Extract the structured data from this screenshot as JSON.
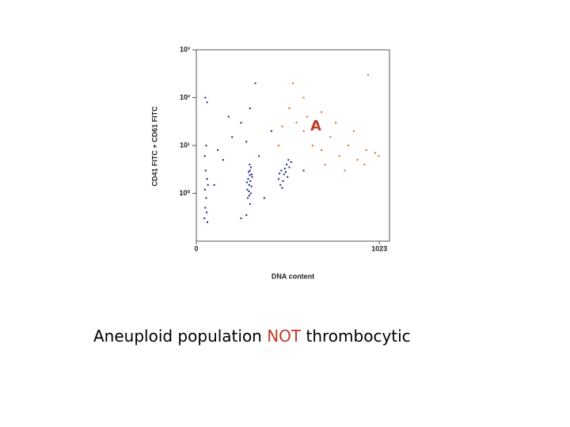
{
  "chart_data": {
    "type": "scatter",
    "y_label": "CD41 FITC + CD61 FITC",
    "x_label": "DNA content",
    "annotation": "A",
    "caption": [
      "Aneuploid population ",
      "NOT",
      " thrombocytic"
    ],
    "caption_colors": [
      "#000000",
      "#c0392b",
      "#000000"
    ],
    "xlim": [
      0,
      1080
    ],
    "xticks": [
      0,
      1023
    ],
    "ylim": [
      0.1,
      1000
    ],
    "yscale": "log",
    "yticks": [
      {
        "value": 1,
        "label": "10⁰"
      },
      {
        "value": 10,
        "label": "10¹"
      },
      {
        "value": 100,
        "label": "10²"
      },
      {
        "value": 1000,
        "label": "10³"
      }
    ],
    "series": [
      {
        "color": "#1a237e",
        "x": [
          285,
          290,
          295,
          300,
          305,
          310,
          288,
          298,
          302,
          292,
          308,
          296,
          312,
          283,
          300,
          306,
          294,
          299,
          460,
          475,
          490,
          505,
          520,
          470,
          485,
          500,
          515,
          530,
          465,
          495,
          480,
          510,
          45,
          50,
          55,
          48,
          60,
          52,
          58,
          65,
          47,
          55,
          62,
          50,
          60,
          120,
          200,
          250,
          150,
          280,
          350,
          420,
          180,
          300,
          330,
          380,
          600,
          250,
          100,
          280
        ],
        "values": [
          1.2,
          2.0,
          1.5,
          3.0,
          1.0,
          2.5,
          0.8,
          4.0,
          1.8,
          2.8,
          1.4,
          0.9,
          2.2,
          1.7,
          0.6,
          3.5,
          1.1,
          2.4,
          2.0,
          3.0,
          2.5,
          4.0,
          3.5,
          1.5,
          1.8,
          2.8,
          5.0,
          4.5,
          2.6,
          3.3,
          1.3,
          2.2,
          0.3,
          0.5,
          0.8,
          1.2,
          2.0,
          3.0,
          0.4,
          1.5,
          6,
          10,
          0.25,
          100,
          80,
          8,
          15,
          30,
          5,
          12,
          6,
          20,
          40,
          60,
          200,
          0.8,
          3,
          0.3,
          1.5,
          0.35
        ]
      },
      {
        "color": "#d2691e",
        "x": [
          520,
          560,
          600,
          650,
          700,
          750,
          800,
          850,
          900,
          950,
          1000,
          620,
          680,
          720,
          780,
          880,
          940,
          460,
          540,
          600,
          960,
          700,
          830,
          1020,
          480
        ],
        "values": [
          60,
          30,
          20,
          10,
          8,
          15,
          6,
          10,
          5,
          8,
          7,
          40,
          25,
          4,
          30,
          20,
          4,
          10,
          200,
          100,
          300,
          50,
          3,
          6,
          25
        ]
      }
    ]
  }
}
